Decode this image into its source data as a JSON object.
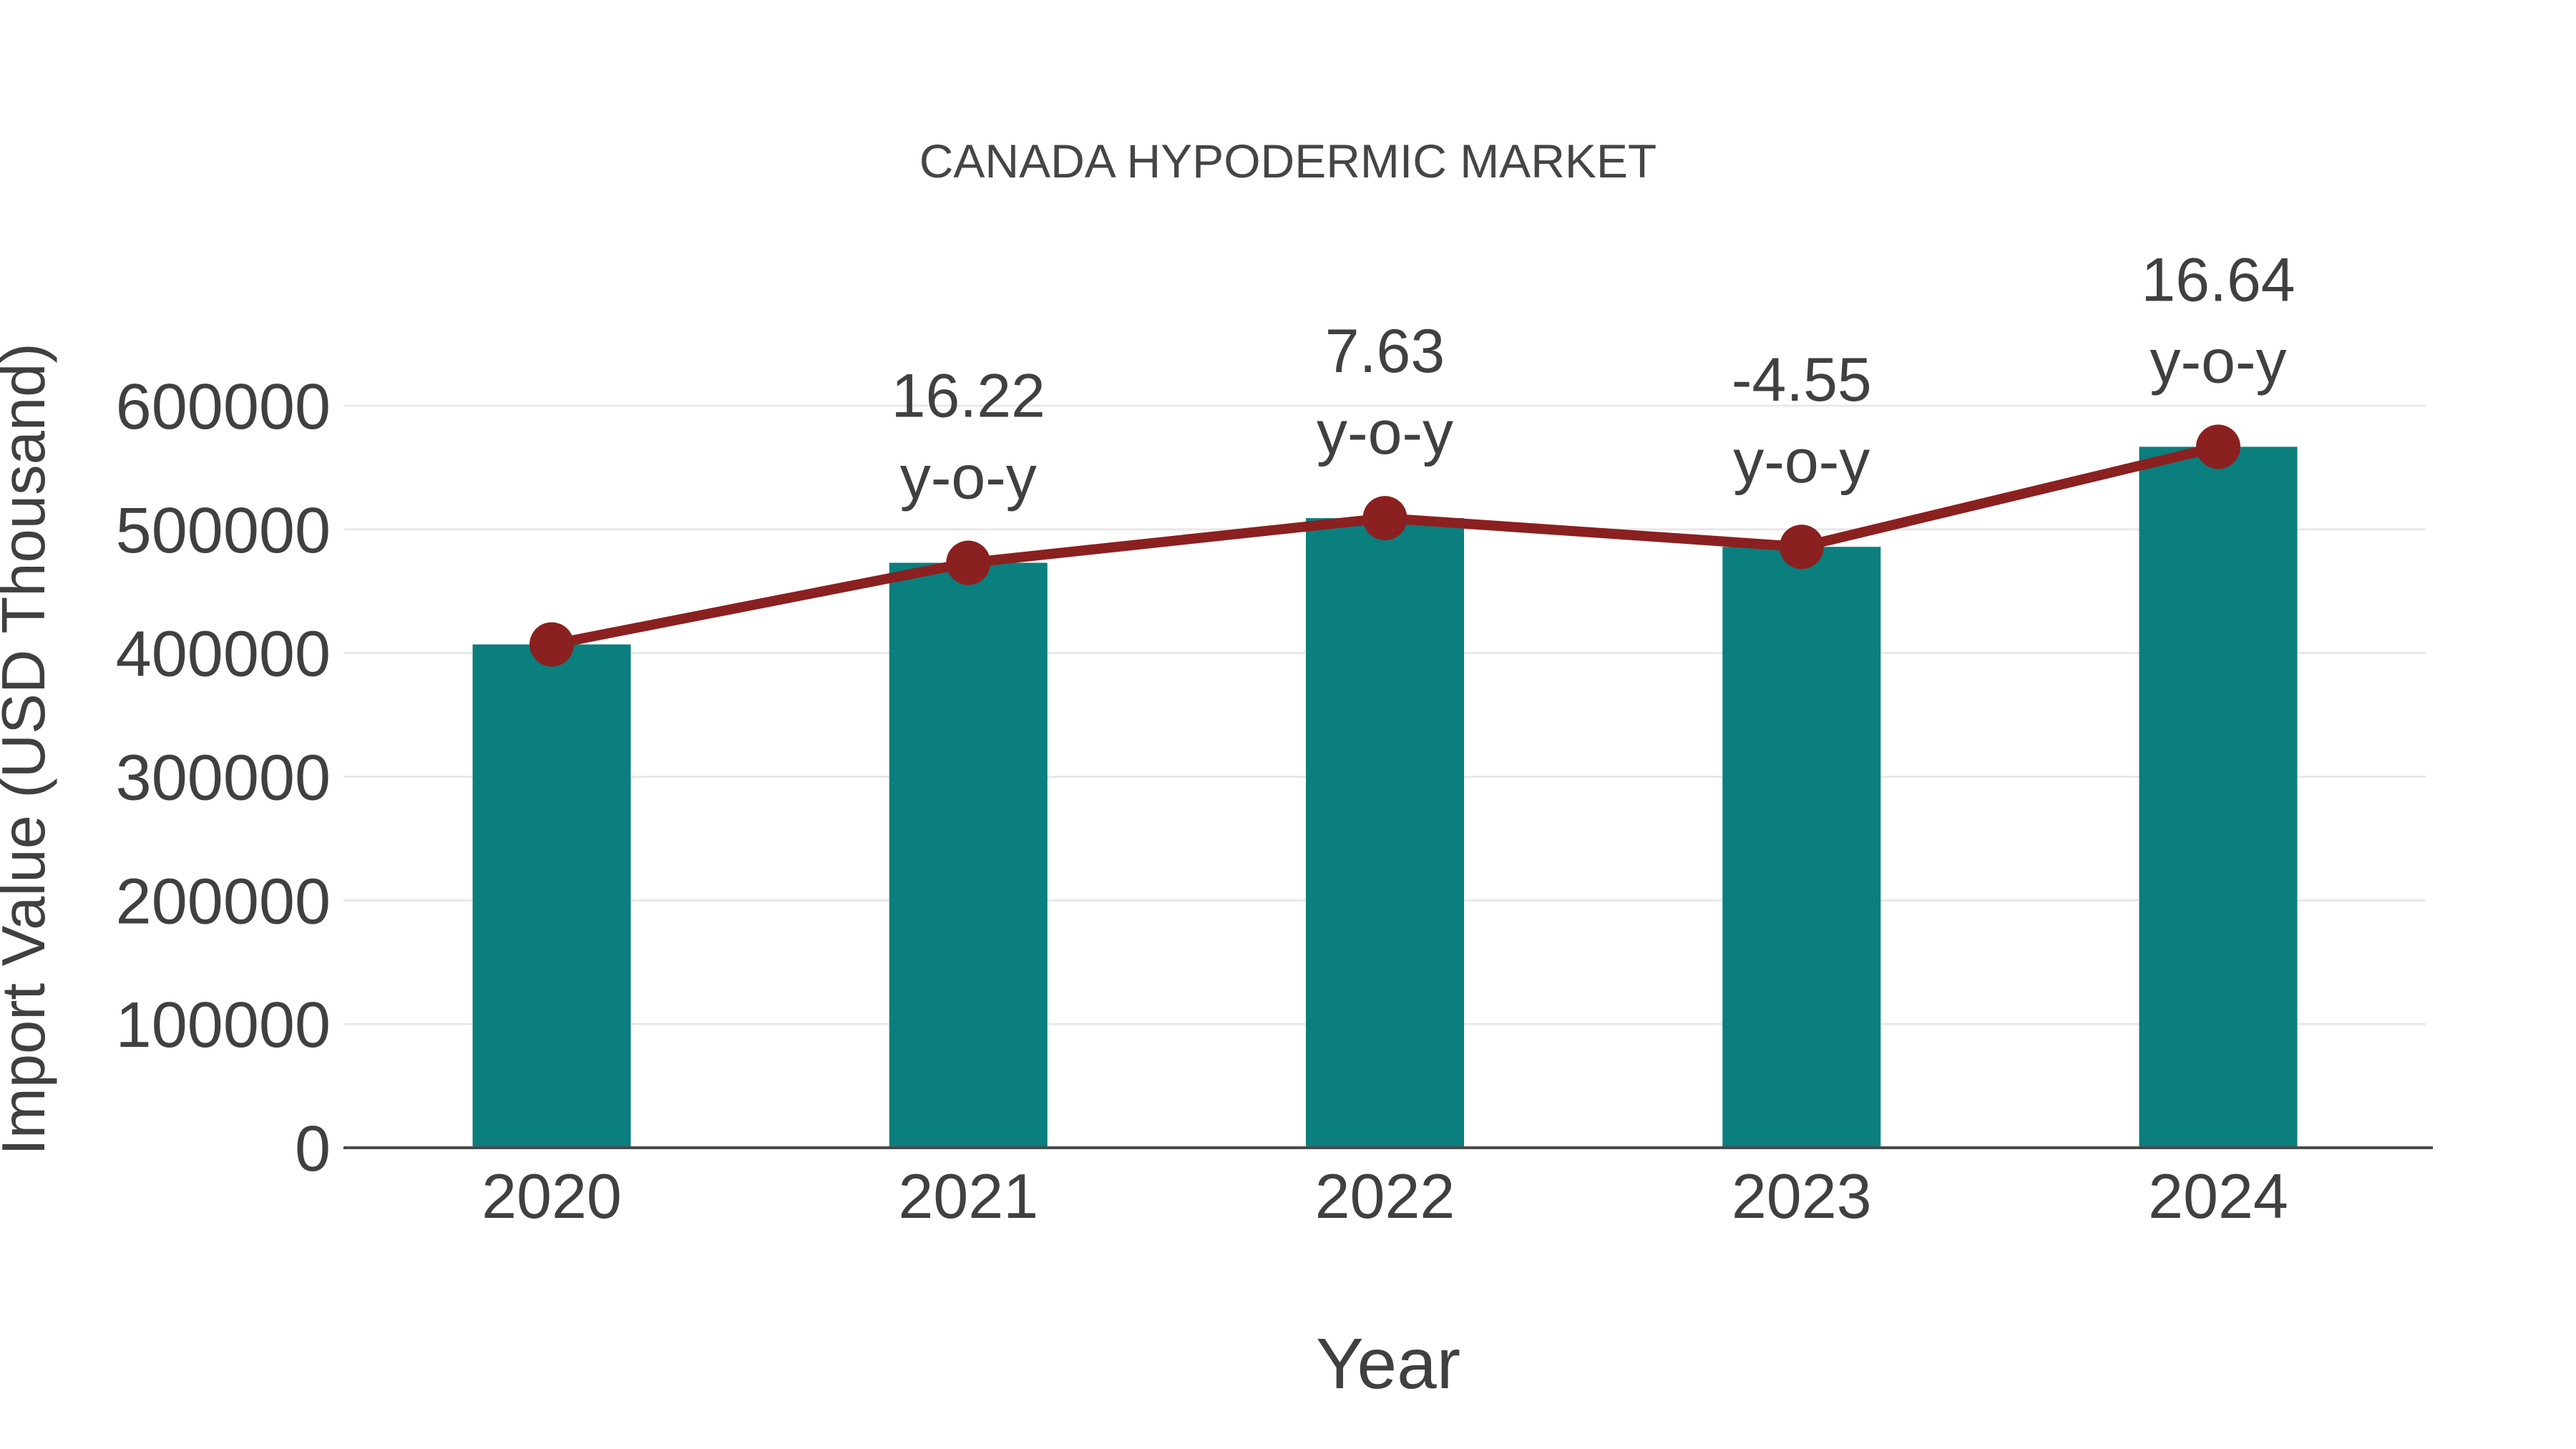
{
  "title": "CANADA HYPODERMIC MARKET",
  "chart_data": {
    "type": "bar",
    "title": "CANADA HYPODERMIC MARKET",
    "xlabel": "Year",
    "ylabel": "Import Value (USD Thousand)",
    "categories": [
      "2020",
      "2021",
      "2022",
      "2023",
      "2024"
    ],
    "series": [
      {
        "name": "Import Value (USD Thousand)",
        "type": "bar",
        "values": [
          407000,
          473000,
          509100,
          485900,
          566800
        ]
      },
      {
        "name": "y-o-y growth",
        "type": "line",
        "values_usd": [
          407000,
          473000,
          509100,
          485900,
          566800
        ],
        "yoy_percent": [
          null,
          16.22,
          7.63,
          -4.55,
          16.64
        ]
      }
    ],
    "annotation_label": "y-o-y",
    "annotations": [
      {
        "category": "2021",
        "value": "16.22",
        "label": "y-o-y"
      },
      {
        "category": "2022",
        "value": "7.63",
        "label": "y-o-y"
      },
      {
        "category": "2023",
        "value": "-4.55",
        "label": "y-o-y"
      },
      {
        "category": "2024",
        "value": "16.64",
        "label": "y-o-y"
      }
    ],
    "ylim": [
      0,
      600000
    ],
    "yticks": [
      0,
      100000,
      200000,
      300000,
      400000,
      500000,
      600000
    ],
    "grid": true,
    "legend": "none",
    "colors": {
      "bar": "#0b7e7e",
      "line": "#8b2020",
      "marker": "#8b2020",
      "grid": "#e8e8e8",
      "axis": "#4a4a4a",
      "text": "#404040",
      "title_text": "#454545",
      "background": "#ffffff"
    }
  }
}
